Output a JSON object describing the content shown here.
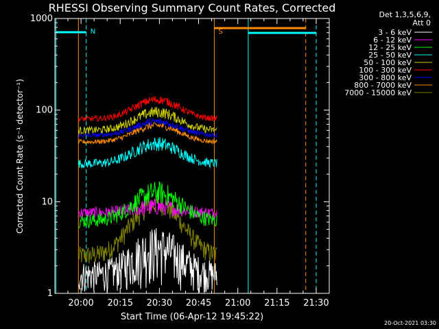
{
  "chart_data": {
    "type": "line",
    "title": "RHESSI Observing Summary Count Rates, Corrected",
    "xlabel": "Start Time (06-Apr-12 19:45:22)",
    "ylabel": "Corrected Count Rate (s⁻¹ detector⁻¹)",
    "ylog": true,
    "ylim": [
      1,
      1000
    ],
    "xlim_minutes": [
      -10,
      95
    ],
    "x_ticks": [
      {
        "label": "20:00",
        "min": 0
      },
      {
        "label": "20:15",
        "min": 15
      },
      {
        "label": "20:30",
        "min": 30
      },
      {
        "label": "20:45",
        "min": 45
      },
      {
        "label": "21:00",
        "min": 60
      },
      {
        "label": "21:15",
        "min": 75
      },
      {
        "label": "21:30",
        "min": 90
      }
    ],
    "y_ticks": [
      {
        "label": "1",
        "v": 1
      },
      {
        "label": "10",
        "v": 10
      },
      {
        "label": "100",
        "v": 100
      },
      {
        "label": "1000",
        "v": 1000
      }
    ],
    "legend_header": [
      "Det 1,3,5,6,9,",
      "Att 0"
    ],
    "legend_position": "top-right",
    "data_window_minutes": [
      -1,
      52
    ],
    "series": [
      {
        "name": "3 - 6 keV",
        "color": "#ffffff",
        "base": 1.6,
        "peak": 3.2,
        "noise": 0.45
      },
      {
        "name": "6 - 12 keV",
        "color": "#ff00ff",
        "base": 7.6,
        "peak": 8.8,
        "noise": 0.06
      },
      {
        "name": "12 - 25 keV",
        "color": "#00ff00",
        "base": 6.2,
        "peak": 12.5,
        "noise": 0.08
      },
      {
        "name": "25 - 50 keV",
        "color": "#00ffff",
        "base": 26,
        "peak": 43,
        "noise": 0.05
      },
      {
        "name": "50 - 100 keV",
        "color": "#d2d200",
        "base": 60,
        "peak": 95,
        "noise": 0.04
      },
      {
        "name": "100 - 300 keV",
        "color": "#ff0000",
        "base": 80,
        "peak": 130,
        "noise": 0.03
      },
      {
        "name": "300 - 800 keV",
        "color": "#0000ff",
        "base": 53,
        "peak": 75,
        "noise": 0.025
      },
      {
        "name": "800 - 7000 keV",
        "color": "#ff8c00",
        "base": 45,
        "peak": 68,
        "noise": 0.025
      },
      {
        "name": "7000 - 15000 keV",
        "color": "#808000",
        "base": 2.6,
        "peak": 9.5,
        "noise": 0.06
      }
    ],
    "annotations": [
      {
        "text": "N",
        "color": "#00ffff",
        "min": 2
      },
      {
        "text": "S",
        "color": "#ff8c00",
        "min": 51
      }
    ],
    "footer_date": "20-Oct-2021 03:30"
  }
}
